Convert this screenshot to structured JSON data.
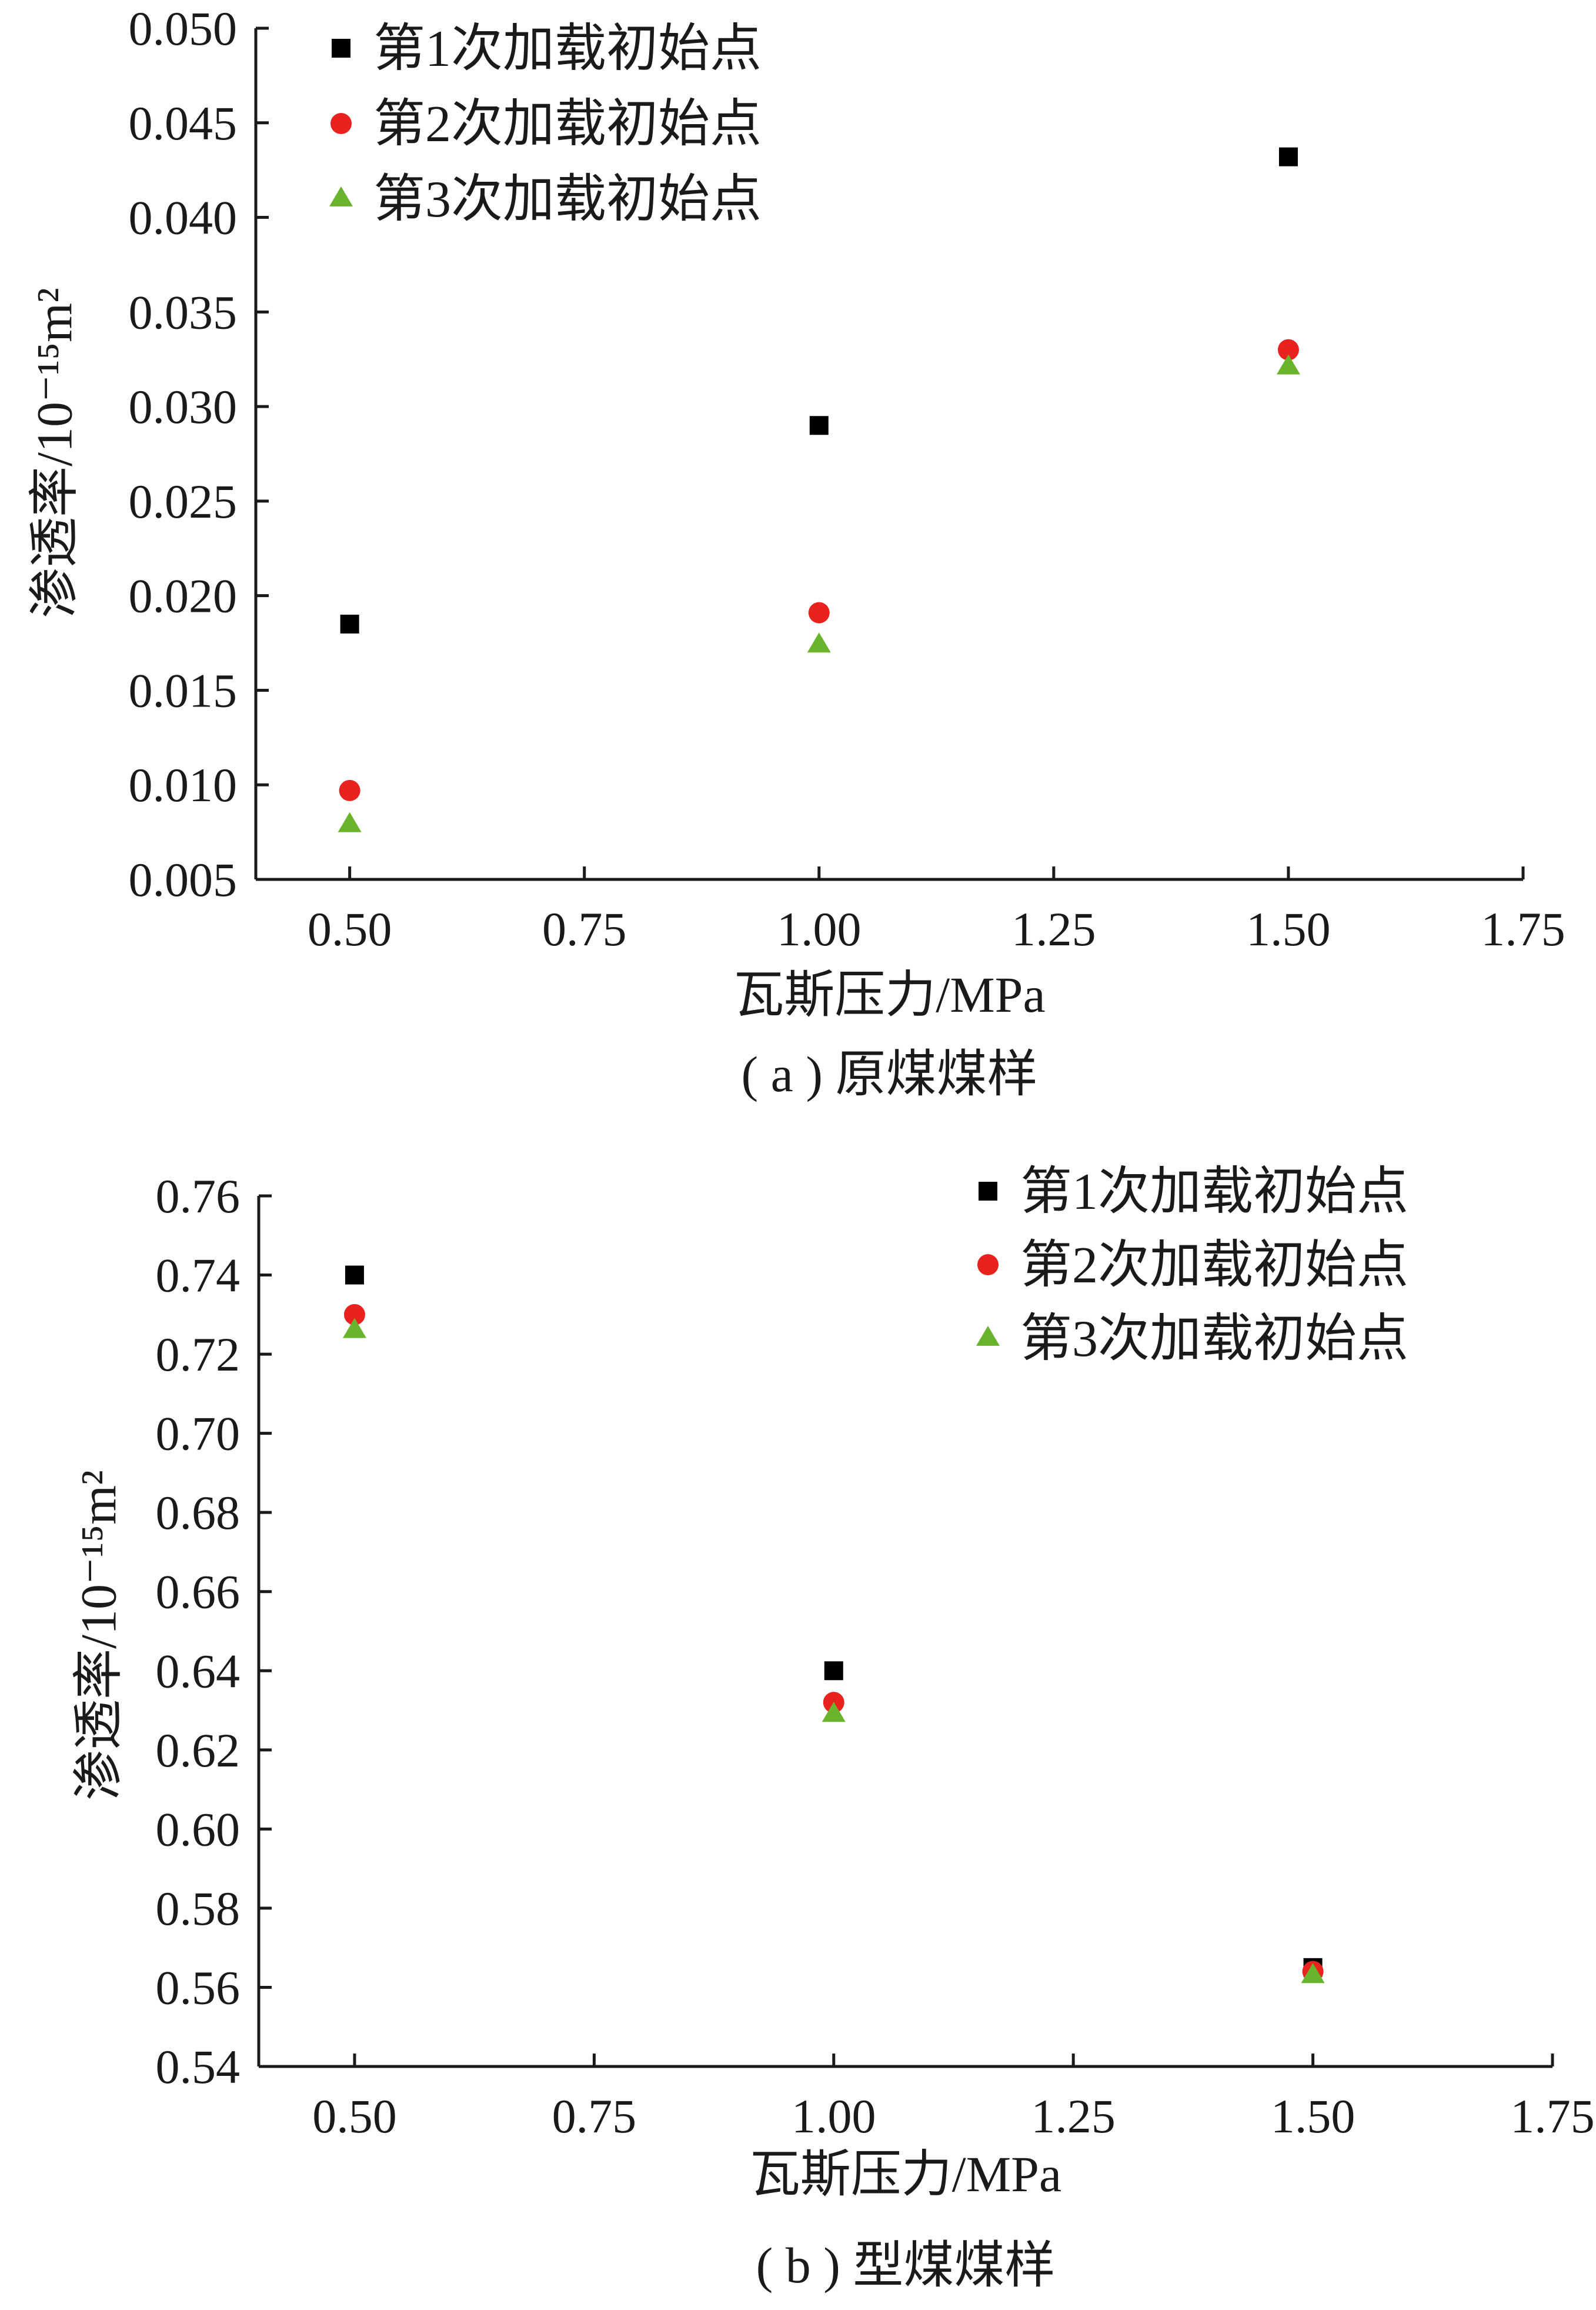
{
  "chart_data": [
    {
      "type": "scatter",
      "caption": "( a ) 原煤煤样",
      "xlabel": "瓦斯压力/MPa",
      "ylabel": "渗透率/10⁻¹⁵m²",
      "xlim": [
        0.4,
        1.75
      ],
      "ylim": [
        0.005,
        0.05
      ],
      "xticks": [
        "0.50",
        "0.75",
        "1.00",
        "1.25",
        "1.50",
        "1.75"
      ],
      "yticks": [
        "0.005",
        "0.010",
        "0.015",
        "0.020",
        "0.025",
        "0.030",
        "0.035",
        "0.040",
        "0.045",
        "0.050"
      ],
      "grid": false,
      "legend_position": "top-left",
      "x": [
        0.5,
        1.0,
        1.5
      ],
      "series": [
        {
          "name": "第1次加载初始点",
          "marker": "square",
          "color": "#000000",
          "values": [
            0.0185,
            0.029,
            0.0432
          ]
        },
        {
          "name": "第2次加载初始点",
          "marker": "circle",
          "color": "#e8231f",
          "values": [
            0.0097,
            0.0191,
            0.033
          ]
        },
        {
          "name": "第3次加载初始点",
          "marker": "triangle",
          "color": "#6ab42d",
          "values": [
            0.0079,
            0.0174,
            0.0321
          ]
        }
      ]
    },
    {
      "type": "scatter",
      "caption": "( b ) 型煤煤样",
      "xlabel": "瓦斯压力/MPa",
      "ylabel": "渗透率/10⁻¹⁵m²",
      "xlim": [
        0.4,
        1.75
      ],
      "ylim": [
        0.54,
        0.76
      ],
      "xticks": [
        "0.50",
        "0.75",
        "1.00",
        "1.25",
        "1.50",
        "1.75"
      ],
      "yticks": [
        "0.54",
        "0.56",
        "0.58",
        "0.60",
        "0.62",
        "0.64",
        "0.66",
        "0.68",
        "0.70",
        "0.72",
        "0.74",
        "0.76"
      ],
      "grid": false,
      "legend_position": "top-right",
      "x": [
        0.5,
        1.0,
        1.5
      ],
      "series": [
        {
          "name": "第1次加载初始点",
          "marker": "square",
          "color": "#000000",
          "values": [
            0.74,
            0.64,
            0.565
          ]
        },
        {
          "name": "第2次加载初始点",
          "marker": "circle",
          "color": "#e8231f",
          "values": [
            0.73,
            0.632,
            0.564
          ]
        },
        {
          "name": "第3次加载初始点",
          "marker": "triangle",
          "color": "#6ab42d",
          "values": [
            0.726,
            0.629,
            0.563
          ]
        }
      ]
    }
  ]
}
